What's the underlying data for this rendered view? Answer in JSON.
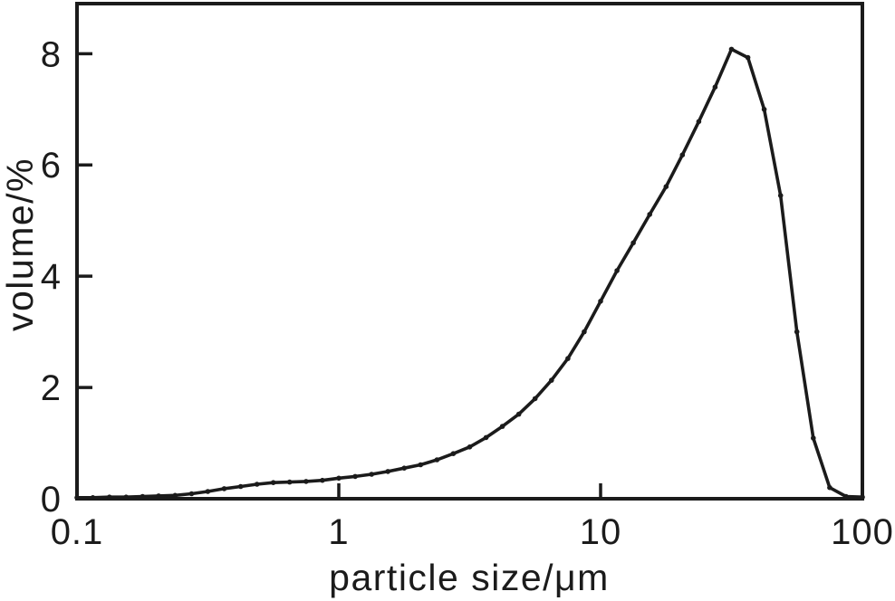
{
  "figure": {
    "background": "#ffffff",
    "ink_color": "#1b1b1b"
  },
  "chart_data": {
    "type": "line",
    "title": "",
    "xlabel": "particle size/μm",
    "ylabel": "volume/%",
    "x_scale": "log",
    "y_scale": "linear",
    "xlim": [
      0.1,
      100
    ],
    "ylim": [
      0,
      8.9
    ],
    "grid": false,
    "legend": "none",
    "marker": "dot",
    "line_color": "#1b1b1b",
    "x_ticks": [
      {
        "value": 0.1,
        "label": "0.1"
      },
      {
        "value": 1,
        "label": "1"
      },
      {
        "value": 10,
        "label": "10"
      },
      {
        "value": 100,
        "label": "100"
      }
    ],
    "y_ticks": [
      {
        "value": 0,
        "label": "0"
      },
      {
        "value": 2,
        "label": "2"
      },
      {
        "value": 4,
        "label": "4"
      },
      {
        "value": 6,
        "label": "6"
      },
      {
        "value": 8,
        "label": "8"
      }
    ],
    "series": [
      {
        "name": "volume distribution",
        "points": [
          [
            0.1,
            0.02
          ],
          [
            0.115,
            0.02
          ],
          [
            0.133,
            0.03
          ],
          [
            0.154,
            0.03
          ],
          [
            0.178,
            0.04
          ],
          [
            0.205,
            0.05
          ],
          [
            0.237,
            0.06
          ],
          [
            0.274,
            0.09
          ],
          [
            0.316,
            0.13
          ],
          [
            0.365,
            0.18
          ],
          [
            0.422,
            0.22
          ],
          [
            0.487,
            0.26
          ],
          [
            0.562,
            0.29
          ],
          [
            0.649,
            0.3
          ],
          [
            0.75,
            0.31
          ],
          [
            0.866,
            0.33
          ],
          [
            1.0,
            0.37
          ],
          [
            1.155,
            0.4
          ],
          [
            1.334,
            0.44
          ],
          [
            1.54,
            0.49
          ],
          [
            1.778,
            0.55
          ],
          [
            2.054,
            0.61
          ],
          [
            2.371,
            0.7
          ],
          [
            2.738,
            0.81
          ],
          [
            3.162,
            0.93
          ],
          [
            3.652,
            1.1
          ],
          [
            4.217,
            1.3
          ],
          [
            4.87,
            1.52
          ],
          [
            5.623,
            1.8
          ],
          [
            6.494,
            2.13
          ],
          [
            7.499,
            2.52
          ],
          [
            8.66,
            3.0
          ],
          [
            10.0,
            3.55
          ],
          [
            11.548,
            4.1
          ],
          [
            13.335,
            4.6
          ],
          [
            15.399,
            5.11
          ],
          [
            17.783,
            5.61
          ],
          [
            20.535,
            6.18
          ],
          [
            23.714,
            6.78
          ],
          [
            27.384,
            7.4
          ],
          [
            31.623,
            8.08
          ],
          [
            36.517,
            7.93
          ],
          [
            42.17,
            7.0
          ],
          [
            48.697,
            5.45
          ],
          [
            56.234,
            3.0
          ],
          [
            64.938,
            1.09
          ],
          [
            74.989,
            0.2
          ],
          [
            86.596,
            0.04
          ],
          [
            100.0,
            0.03
          ]
        ]
      }
    ]
  }
}
